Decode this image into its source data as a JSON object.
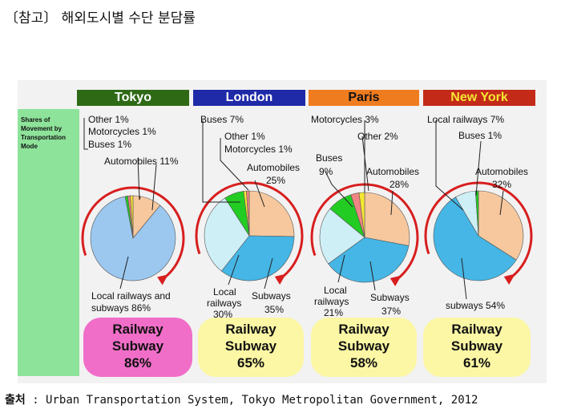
{
  "header": {
    "title": "〔참고〕 해외도시별 수단 분담률"
  },
  "side_label": "Shares of Movement by Transportation Mode",
  "footer": {
    "source_label": "출처",
    "source_text": " : Urban Transportation System, Tokyo Metropolitan Government, 2012"
  },
  "colors": {
    "tokyo_header": "#2e6a16",
    "london_header": "#1f2aa8",
    "paris_header": "#f07c20",
    "newyork_header": "#c42a18",
    "automobiles": "#f7c89e",
    "subways": "#45b6e5",
    "local_railways": "#cfeff6",
    "rail_combined": "#9cc8f0",
    "buses": "#22cc22",
    "other": "#f5e733",
    "motorcycles": "#f08484",
    "arrow": "#d81e1e",
    "tokyo_box": "#f06ec8",
    "other_box": "#fbf7a4"
  },
  "chart_data": [
    {
      "type": "pie",
      "title": "Tokyo",
      "labels": [
        "Automobiles",
        "Local railways and subways",
        "Buses",
        "Motorcycles",
        "Other"
      ],
      "values": [
        11,
        86,
        1,
        1,
        1
      ],
      "label_texts": [
        "Other 1%",
        "Motorcycles 1%",
        "Buses 1%",
        "Automobiles 11%",
        "Local railways and",
        "subways 86%"
      ],
      "railway_subway_share": "86%"
    },
    {
      "type": "pie",
      "title": "London",
      "labels": [
        "Automobiles",
        "Subways",
        "Local railways",
        "Buses",
        "Other",
        "Motorcycles"
      ],
      "values": [
        25,
        35,
        30,
        7,
        1,
        1
      ],
      "label_texts": [
        "Buses 7%",
        "Other 1%",
        "Motorcycles 1%",
        "Automobiles",
        "25%",
        "Local",
        "railways",
        "30%",
        "Subways",
        "35%"
      ],
      "railway_subway_share": "65%"
    },
    {
      "type": "pie",
      "title": "Paris",
      "labels": [
        "Automobiles",
        "Subways",
        "Local railways",
        "Buses",
        "Other",
        "Motorcycles"
      ],
      "values": [
        28,
        37,
        21,
        9,
        2,
        3
      ],
      "label_texts": [
        "Motorcycles 3%",
        "Other 2%",
        "Buses",
        "9%",
        "Automobiles",
        "28%",
        "Local",
        "railways",
        "21%",
        "Subways",
        "37%"
      ],
      "railway_subway_share": "58%"
    },
    {
      "type": "pie",
      "title": "New York",
      "labels": [
        "Automobiles",
        "Subways",
        "Local railways",
        "Buses"
      ],
      "values": [
        32,
        54,
        7,
        1
      ],
      "label_texts": [
        "Local railways 7%",
        "Buses 1%",
        "Automobiles",
        "32%",
        "subways 54%"
      ],
      "railway_subway_share": "61%"
    }
  ],
  "rail_box": {
    "line1": "Railway",
    "line2": "Subway"
  }
}
